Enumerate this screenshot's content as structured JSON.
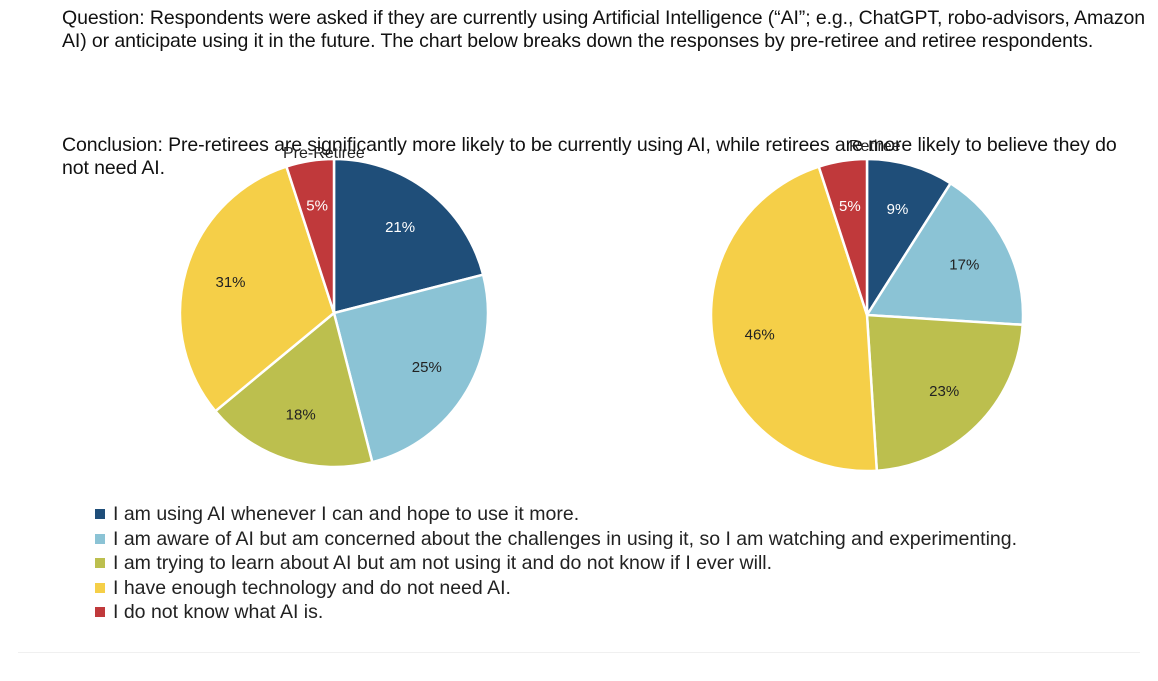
{
  "question": "Question: Respondents were asked if they are currently using Artificial Intelligence (“AI”; e.g., ChatGPT, robo-advisors, Amazon AI) or anticipate using it in the future. The chart below breaks down the responses by pre-retiree and retiree respondents.",
  "conclusion": "Conclusion: Pre-retirees are significantly more likely to be currently using AI, while retirees are more likely to believe they do not need AI.",
  "colors": [
    "#1f4e79",
    "#8bc3d5",
    "#bcbf4e",
    "#f5cf48",
    "#c0393b"
  ],
  "chart_data": [
    {
      "type": "pie",
      "title": "Pre-Retiree",
      "categories": [
        "I am using AI whenever I can and hope to use it more.",
        "I am aware of AI but am concerned about the challenges in using it, so I am watching and experimenting.",
        "I am trying to learn about AI but am not using it and do not know if I ever will.",
        "I have enough technology and do not need AI.",
        "I do not know what AI is."
      ],
      "values": [
        21,
        25,
        18,
        31,
        5
      ],
      "labels": [
        "21%",
        "25%",
        "18%",
        "31%",
        "5%"
      ]
    },
    {
      "type": "pie",
      "title": "Retiree",
      "categories": [
        "I am using AI whenever I can and hope to use it more.",
        "I am aware of AI but am concerned about the challenges in using it, so I am watching and experimenting.",
        "I am trying to learn about AI but am not using it and do not know if I ever will.",
        "I have enough technology and do not need AI.",
        "I do not know what AI is."
      ],
      "values": [
        9,
        17,
        23,
        46,
        5
      ],
      "labels": [
        "9%",
        "17%",
        "23%",
        "46%",
        "5%"
      ]
    }
  ],
  "legend": [
    "I am using AI whenever I can and hope to use it more.",
    "I am aware of AI but am concerned about the challenges in using it, so I am watching and experimenting.",
    "I am trying to learn about AI but am not using it and do not know if I ever will.",
    "I have enough technology and do not need AI.",
    "I do not know what AI is."
  ]
}
